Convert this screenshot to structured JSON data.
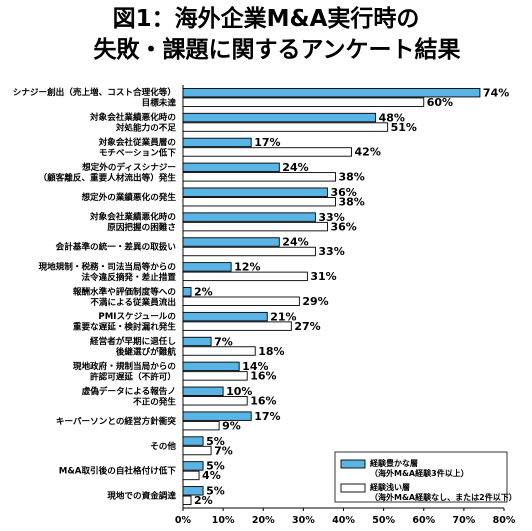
{
  "title": {
    "line1": "図1：海外企業M&A実行時の",
    "line2": "失敗・課題に関するアンケート結果"
  },
  "chart_data": {
    "type": "bar",
    "orientation": "horizontal",
    "categories": [
      [
        "シナジー創出（売上増、コスト合理化等）",
        "目標未達"
      ],
      [
        "対象会社業績悪化時の",
        "対処能力の不足"
      ],
      [
        "対象会社従業員層の",
        "モチベーション低下"
      ],
      [
        "想定外のディスシナジー",
        "（顧客離反、重要人材流出等）発生"
      ],
      [
        "想定外の業績悪化の発生"
      ],
      [
        "対象会社業績悪化時の",
        "原因把握の困難さ"
      ],
      [
        "会計基準の統一・差異の取扱い"
      ],
      [
        "現地規制・税務・司法当局等からの",
        "法令違反摘発・差止措置"
      ],
      [
        "報酬水準や評価制度等への",
        "不満による従業員流出"
      ],
      [
        "PMIスケジュールの",
        "重要な遅延・検討漏れ発生"
      ],
      [
        "経営者が早期に退任し",
        "後継選びが難航"
      ],
      [
        "現地政府・規制当局からの",
        "許認可遅延（不許可）"
      ],
      [
        "虚偽データによる報告ノ",
        "不正の発生"
      ],
      [
        "キーパーソンとの経営方針衝突"
      ],
      [
        "その他"
      ],
      [
        "M&A取引後の自社格付け低下"
      ],
      [
        "現地での資金調達"
      ]
    ],
    "series": [
      {
        "name": "経験豊かな層（海外M&A経験3件以上）",
        "color": "#5ab4e5",
        "values": [
          74,
          48,
          17,
          24,
          36,
          33,
          24,
          12,
          2,
          21,
          7,
          14,
          10,
          17,
          5,
          5,
          5
        ],
        "labels": [
          "74%",
          "48%",
          "17%",
          "24%",
          "36%",
          "33%",
          "24%",
          "12%",
          "2%",
          "21%",
          "7%",
          "14%",
          "10%",
          "17%",
          "5%",
          "5%",
          "5%"
        ]
      },
      {
        "name": "経験浅い層（海外M&A経験なし、または2件以下）",
        "color": "#ffffff",
        "values": [
          60,
          51,
          42,
          38,
          38,
          36,
          33,
          31,
          29,
          27,
          18,
          16,
          16,
          9,
          7,
          4,
          2
        ],
        "labels": [
          "60%",
          "51%",
          "42%",
          "38%",
          "38%",
          "36%",
          "33%",
          "31%",
          "29%",
          "27%",
          "18%",
          "16%",
          "16%",
          "9%",
          "7%",
          "4%",
          "2%"
        ]
      }
    ],
    "xlim": [
      0,
      80
    ],
    "xticks": [
      "0%",
      "10%",
      "20%",
      "30%",
      "40%",
      "50%",
      "60%",
      "70%",
      "80%"
    ],
    "legend": {
      "position": "lower-right",
      "entries": [
        [
          "経験豊かな層",
          "（海外M&A経験3件以上）"
        ],
        [
          "経験浅い層",
          "（海外M&A経験なし、または2件以下）"
        ]
      ]
    },
    "grid": false
  }
}
